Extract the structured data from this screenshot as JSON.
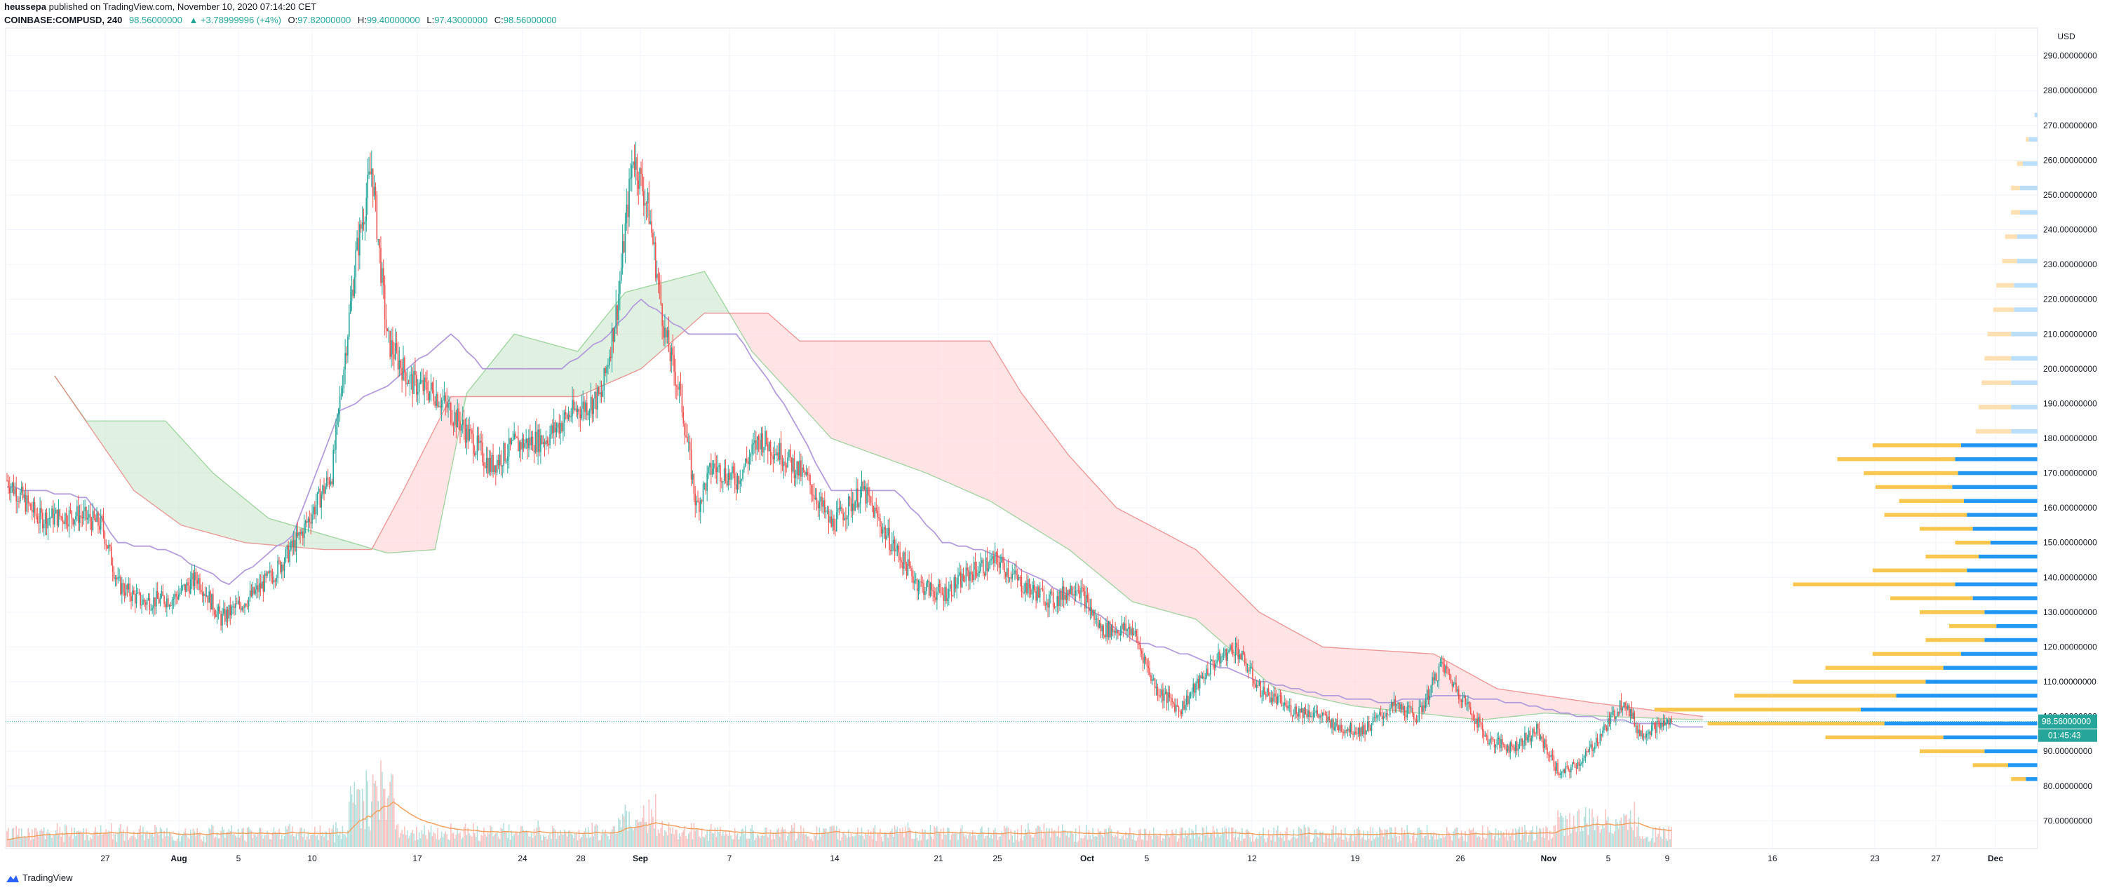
{
  "header": {
    "publisher": "heussepa",
    "published_text": "published on TradingView.com, November 10, 2020 07:14:20 CET",
    "symbol": "COINBASE:COMPUSD, 240",
    "last": "98.56000000",
    "change": "+3.78999996 (+4%)",
    "open_label": "O:",
    "open": "97.82000000",
    "high_label": "H:",
    "high": "99.40000000",
    "low_label": "L:",
    "low": "97.43000000",
    "close_label": "C:",
    "close": "98.56000000"
  },
  "footer": {
    "brand": "TradingView"
  },
  "colors": {
    "up": "#26a69a",
    "down": "#ef5350",
    "cloud_bull": "#a5d6a7",
    "cloud_bear": "#f8bbd0",
    "kijun": "#b39ddb",
    "vp_up": "#2196f3",
    "vp_down": "#f9c74f",
    "vol_ma": "#f4a261"
  },
  "chart_data": {
    "type": "candlestick",
    "price_axis": {
      "currency": "USD",
      "ticks": [
        "290.00000000",
        "280.00000000",
        "270.00000000",
        "260.00000000",
        "250.00000000",
        "240.00000000",
        "230.00000000",
        "220.00000000",
        "210.00000000",
        "200.00000000",
        "190.00000000",
        "180.00000000",
        "170.00000000",
        "160.00000000",
        "150.00000000",
        "140.00000000",
        "130.00000000",
        "120.00000000",
        "110.00000000",
        "100.00000000",
        "90.00000000",
        "80.00000000",
        "70.00000000"
      ],
      "tick_values": [
        290,
        280,
        270,
        260,
        250,
        240,
        230,
        220,
        210,
        200,
        190,
        180,
        170,
        160,
        150,
        140,
        130,
        120,
        110,
        100,
        90,
        80,
        70
      ],
      "range": [
        62,
        298
      ],
      "last_price": 98.56,
      "last_price_label": "98.56000000",
      "countdown_label": "01:45:43"
    },
    "time_axis": {
      "labels": [
        "27",
        "Aug",
        "5",
        "10",
        "17",
        "24",
        "28",
        "Sep",
        "7",
        "14",
        "21",
        "25",
        "Oct",
        "5",
        "12",
        "19",
        "26",
        "Nov",
        "5",
        "9",
        "16",
        "23",
        "27",
        "Dec"
      ],
      "bold": [
        "Aug",
        "Sep",
        "Oct",
        "Nov",
        "Dec"
      ]
    },
    "price_path": [
      {
        "day": 0,
        "price": 168
      },
      {
        "day": 4,
        "price": 157
      },
      {
        "day": 9,
        "price": 158
      },
      {
        "day": 12,
        "price": 155
      },
      {
        "day": 14,
        "price": 138
      },
      {
        "day": 17,
        "price": 133
      },
      {
        "day": 21,
        "price": 134
      },
      {
        "day": 24,
        "price": 140
      },
      {
        "day": 27,
        "price": 128
      },
      {
        "day": 31,
        "price": 135
      },
      {
        "day": 34,
        "price": 142
      },
      {
        "day": 37,
        "price": 152
      },
      {
        "day": 41,
        "price": 170
      },
      {
        "day": 44,
        "price": 232
      },
      {
        "day": 46,
        "price": 258
      },
      {
        "day": 48,
        "price": 208
      },
      {
        "day": 51,
        "price": 196
      },
      {
        "day": 54,
        "price": 193
      },
      {
        "day": 57,
        "price": 185
      },
      {
        "day": 61,
        "price": 172
      },
      {
        "day": 64,
        "price": 178
      },
      {
        "day": 68,
        "price": 180
      },
      {
        "day": 71,
        "price": 187
      },
      {
        "day": 75,
        "price": 192
      },
      {
        "day": 77,
        "price": 218
      },
      {
        "day": 79,
        "price": 262
      },
      {
        "day": 81,
        "price": 245
      },
      {
        "day": 83,
        "price": 210
      },
      {
        "day": 85,
        "price": 192
      },
      {
        "day": 87,
        "price": 160
      },
      {
        "day": 89,
        "price": 172
      },
      {
        "day": 92,
        "price": 168
      },
      {
        "day": 95,
        "price": 180
      },
      {
        "day": 98,
        "price": 175
      },
      {
        "day": 101,
        "price": 168
      },
      {
        "day": 104,
        "price": 155
      },
      {
        "day": 108,
        "price": 165
      },
      {
        "day": 111,
        "price": 152
      },
      {
        "day": 115,
        "price": 138
      },
      {
        "day": 118,
        "price": 135
      },
      {
        "day": 122,
        "price": 142
      },
      {
        "day": 125,
        "price": 145
      },
      {
        "day": 128,
        "price": 138
      },
      {
        "day": 132,
        "price": 133
      },
      {
        "day": 135,
        "price": 138
      },
      {
        "day": 138,
        "price": 125
      },
      {
        "day": 142,
        "price": 125
      },
      {
        "day": 145,
        "price": 108
      },
      {
        "day": 148,
        "price": 102
      },
      {
        "day": 152,
        "price": 115
      },
      {
        "day": 155,
        "price": 120
      },
      {
        "day": 158,
        "price": 108
      },
      {
        "day": 162,
        "price": 102
      },
      {
        "day": 165,
        "price": 101
      },
      {
        "day": 168,
        "price": 97
      },
      {
        "day": 171,
        "price": 96
      },
      {
        "day": 175,
        "price": 103
      },
      {
        "day": 178,
        "price": 100
      },
      {
        "day": 181,
        "price": 115
      },
      {
        "day": 184,
        "price": 104
      },
      {
        "day": 187,
        "price": 93
      },
      {
        "day": 190,
        "price": 91
      },
      {
        "day": 193,
        "price": 96
      },
      {
        "day": 196,
        "price": 83
      },
      {
        "day": 199,
        "price": 88
      },
      {
        "day": 202,
        "price": 98
      },
      {
        "day": 204,
        "price": 105
      },
      {
        "day": 206,
        "price": 95
      },
      {
        "day": 208,
        "price": 97
      },
      {
        "day": 210,
        "price": 98.5
      }
    ],
    "cloud_span_a": [
      {
        "day": 6,
        "value": 198
      },
      {
        "day": 10,
        "value": 185
      },
      {
        "day": 20,
        "value": 185
      },
      {
        "day": 26,
        "value": 170
      },
      {
        "day": 33,
        "value": 157
      },
      {
        "day": 48,
        "value": 147
      },
      {
        "day": 54,
        "value": 148
      },
      {
        "day": 58,
        "value": 193
      },
      {
        "day": 64,
        "value": 210
      },
      {
        "day": 72,
        "value": 205
      },
      {
        "day": 78,
        "value": 222
      },
      {
        "day": 88,
        "value": 228
      },
      {
        "day": 94,
        "value": 205
      },
      {
        "day": 104,
        "value": 180
      },
      {
        "day": 116,
        "value": 170
      },
      {
        "day": 124,
        "value": 162
      },
      {
        "day": 134,
        "value": 148
      },
      {
        "day": 142,
        "value": 133
      },
      {
        "day": 150,
        "value": 128
      },
      {
        "day": 160,
        "value": 108
      },
      {
        "day": 170,
        "value": 103
      },
      {
        "day": 178,
        "value": 101
      },
      {
        "day": 186,
        "value": 99
      },
      {
        "day": 194,
        "value": 101
      },
      {
        "day": 202,
        "value": 100
      },
      {
        "day": 214,
        "value": 99
      }
    ],
    "cloud_span_b": [
      {
        "day": 6,
        "value": 198
      },
      {
        "day": 16,
        "value": 165
      },
      {
        "day": 22,
        "value": 155
      },
      {
        "day": 30,
        "value": 150
      },
      {
        "day": 40,
        "value": 148
      },
      {
        "day": 46,
        "value": 148
      },
      {
        "day": 50,
        "value": 165
      },
      {
        "day": 56,
        "value": 192
      },
      {
        "day": 72,
        "value": 192
      },
      {
        "day": 80,
        "value": 200
      },
      {
        "day": 88,
        "value": 216
      },
      {
        "day": 96,
        "value": 216
      },
      {
        "day": 100,
        "value": 208
      },
      {
        "day": 124,
        "value": 208
      },
      {
        "day": 128,
        "value": 193
      },
      {
        "day": 134,
        "value": 175
      },
      {
        "day": 140,
        "value": 160
      },
      {
        "day": 150,
        "value": 148
      },
      {
        "day": 158,
        "value": 130
      },
      {
        "day": 166,
        "value": 120
      },
      {
        "day": 180,
        "value": 118
      },
      {
        "day": 188,
        "value": 108
      },
      {
        "day": 200,
        "value": 104
      },
      {
        "day": 214,
        "value": 100
      }
    ],
    "kijun_line": [
      {
        "day": 0,
        "value": 166
      },
      {
        "day": 10,
        "value": 163
      },
      {
        "day": 14,
        "value": 150
      },
      {
        "day": 20,
        "value": 148
      },
      {
        "day": 28,
        "value": 138
      },
      {
        "day": 36,
        "value": 152
      },
      {
        "day": 42,
        "value": 188
      },
      {
        "day": 48,
        "value": 195
      },
      {
        "day": 56,
        "value": 210
      },
      {
        "day": 60,
        "value": 200
      },
      {
        "day": 70,
        "value": 200
      },
      {
        "day": 76,
        "value": 210
      },
      {
        "day": 80,
        "value": 220
      },
      {
        "day": 86,
        "value": 210
      },
      {
        "day": 92,
        "value": 210
      },
      {
        "day": 98,
        "value": 190
      },
      {
        "day": 104,
        "value": 165
      },
      {
        "day": 112,
        "value": 165
      },
      {
        "day": 118,
        "value": 150
      },
      {
        "day": 124,
        "value": 147
      },
      {
        "day": 130,
        "value": 140
      },
      {
        "day": 136,
        "value": 132
      },
      {
        "day": 142,
        "value": 122
      },
      {
        "day": 150,
        "value": 117
      },
      {
        "day": 158,
        "value": 110
      },
      {
        "day": 166,
        "value": 106
      },
      {
        "day": 174,
        "value": 104
      },
      {
        "day": 182,
        "value": 106
      },
      {
        "day": 190,
        "value": 104
      },
      {
        "day": 198,
        "value": 100
      },
      {
        "day": 206,
        "value": 98
      },
      {
        "day": 214,
        "value": 97
      }
    ],
    "volume_profile": [
      {
        "price": 273,
        "up": 1,
        "down": 0
      },
      {
        "price": 266,
        "up": 3,
        "down": 1
      },
      {
        "price": 259,
        "up": 5,
        "down": 2
      },
      {
        "price": 252,
        "up": 6,
        "down": 3
      },
      {
        "price": 245,
        "up": 6,
        "down": 3
      },
      {
        "price": 238,
        "up": 7,
        "down": 4
      },
      {
        "price": 231,
        "up": 7,
        "down": 5
      },
      {
        "price": 224,
        "up": 8,
        "down": 6
      },
      {
        "price": 217,
        "up": 8,
        "down": 7
      },
      {
        "price": 210,
        "up": 9,
        "down": 8
      },
      {
        "price": 203,
        "up": 9,
        "down": 9
      },
      {
        "price": 196,
        "up": 9,
        "down": 10
      },
      {
        "price": 189,
        "up": 9,
        "down": 11
      },
      {
        "price": 182,
        "up": 9,
        "down": 12
      },
      {
        "price": 178,
        "up": 26,
        "down": 30
      },
      {
        "price": 174,
        "up": 28,
        "down": 40
      },
      {
        "price": 170,
        "up": 27,
        "down": 32
      },
      {
        "price": 166,
        "up": 29,
        "down": 26
      },
      {
        "price": 162,
        "up": 25,
        "down": 22
      },
      {
        "price": 158,
        "up": 24,
        "down": 28
      },
      {
        "price": 154,
        "up": 22,
        "down": 18
      },
      {
        "price": 150,
        "up": 16,
        "down": 12
      },
      {
        "price": 146,
        "up": 20,
        "down": 18
      },
      {
        "price": 142,
        "up": 24,
        "down": 32
      },
      {
        "price": 138,
        "up": 28,
        "down": 55
      },
      {
        "price": 134,
        "up": 22,
        "down": 28
      },
      {
        "price": 130,
        "up": 18,
        "down": 22
      },
      {
        "price": 126,
        "up": 14,
        "down": 16
      },
      {
        "price": 122,
        "up": 18,
        "down": 20
      },
      {
        "price": 118,
        "up": 26,
        "down": 30
      },
      {
        "price": 114,
        "up": 32,
        "down": 40
      },
      {
        "price": 110,
        "up": 38,
        "down": 45
      },
      {
        "price": 106,
        "up": 48,
        "down": 55
      },
      {
        "price": 102,
        "up": 60,
        "down": 70
      },
      {
        "price": 98,
        "up": 52,
        "down": 60
      },
      {
        "price": 94,
        "up": 32,
        "down": 40
      },
      {
        "price": 90,
        "up": 18,
        "down": 22
      },
      {
        "price": 86,
        "up": 10,
        "down": 12
      },
      {
        "price": 82,
        "up": 4,
        "down": 5
      }
    ]
  }
}
